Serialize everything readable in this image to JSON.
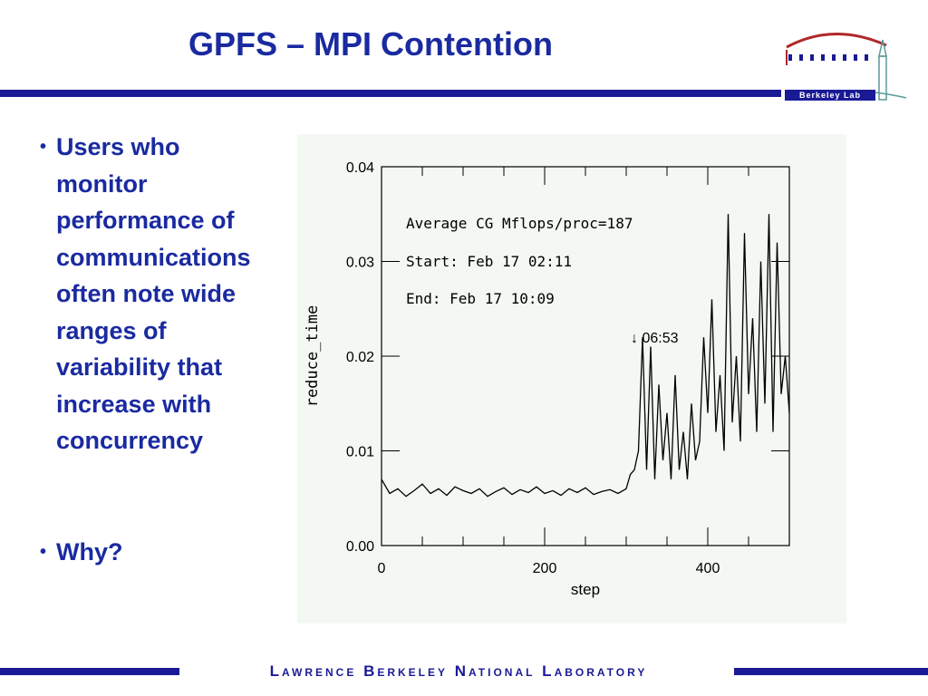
{
  "slide": {
    "title": "GPFS – MPI Contention",
    "bullets": [
      "Users who\nmonitor\nperformance of\ncommunications\noften note wide\nranges of\nvariability that\nincrease with\nconcurrency",
      "Why?"
    ],
    "footer": "Lawrence Berkeley National Laboratory",
    "logo_text": "Berkeley Lab",
    "colors": {
      "title": "#1a2aa0",
      "bar": "#1a1a96",
      "logo_red": "#b02828",
      "logo_teal": "#5a9a9a"
    }
  },
  "chart_data": {
    "type": "line",
    "title": "",
    "xlabel": "step",
    "ylabel": "reduce_time",
    "xlim": [
      0,
      500
    ],
    "ylim": [
      0,
      0.04
    ],
    "x_ticks": [
      0,
      200,
      400
    ],
    "y_ticks": [
      "0.00",
      "0.01",
      "0.02",
      "0.03",
      "0.04"
    ],
    "grid": false,
    "annotations": [
      "Average CG Mflops/proc=187",
      "Start: Feb 17 02:11",
      "End: Feb 17 10:09",
      "↓ 06:53"
    ],
    "series": [
      {
        "x": [
          0,
          10,
          20,
          30,
          40,
          50,
          60,
          70,
          80,
          90,
          100,
          110,
          120,
          130,
          140,
          150,
          160,
          170,
          180,
          190,
          200,
          210,
          220,
          230,
          240,
          250,
          260,
          270,
          280,
          290,
          300,
          305,
          310,
          315,
          320,
          325,
          330,
          335,
          340,
          345,
          350,
          355,
          360,
          365,
          370,
          375,
          380,
          385,
          390,
          395,
          400,
          405,
          410,
          415,
          420,
          425,
          430,
          435,
          440,
          445,
          450,
          455,
          460,
          465,
          470,
          475,
          480,
          485,
          490,
          495,
          500
        ],
        "values": [
          0.007,
          0.0055,
          0.006,
          0.0052,
          0.0058,
          0.0065,
          0.0055,
          0.006,
          0.0053,
          0.0062,
          0.0058,
          0.0055,
          0.006,
          0.0052,
          0.0057,
          0.0061,
          0.0054,
          0.0059,
          0.0056,
          0.0062,
          0.0055,
          0.0058,
          0.0053,
          0.006,
          0.0056,
          0.0061,
          0.0054,
          0.0057,
          0.0059,
          0.0055,
          0.006,
          0.0075,
          0.008,
          0.01,
          0.022,
          0.008,
          0.021,
          0.007,
          0.017,
          0.009,
          0.014,
          0.007,
          0.018,
          0.008,
          0.012,
          0.007,
          0.015,
          0.009,
          0.011,
          0.022,
          0.014,
          0.026,
          0.012,
          0.018,
          0.01,
          0.035,
          0.013,
          0.02,
          0.011,
          0.033,
          0.016,
          0.024,
          0.012,
          0.03,
          0.015,
          0.035,
          0.012,
          0.032,
          0.016,
          0.02,
          0.014
        ]
      }
    ]
  }
}
